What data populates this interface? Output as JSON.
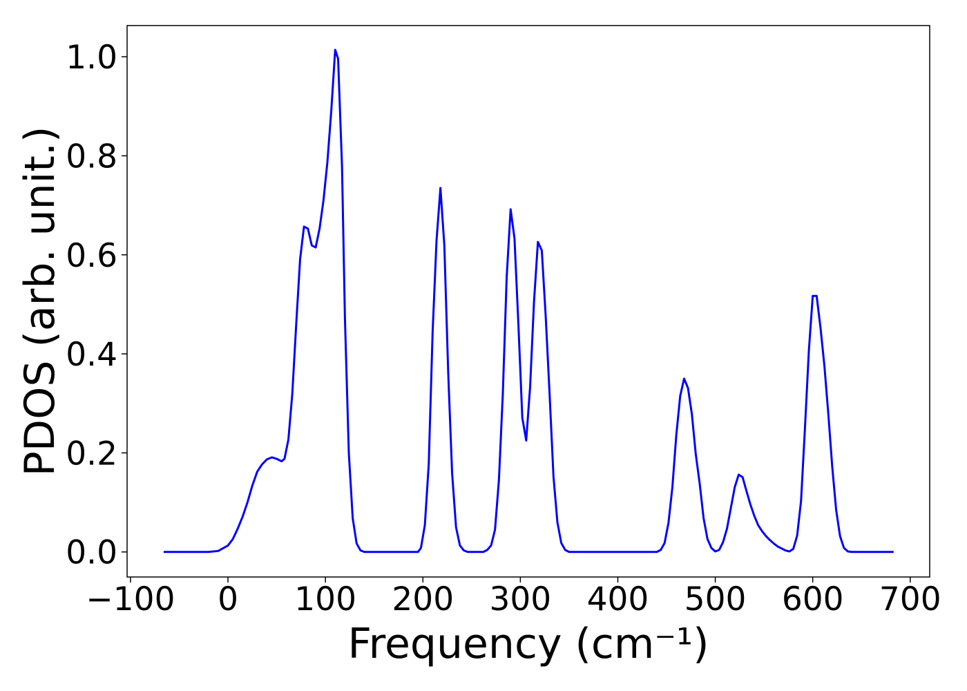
{
  "chart_data": {
    "type": "line",
    "xlabel": "Frequency (cm⁻¹)",
    "ylabel": "PDOS (arb. unit.)",
    "xlim": [
      -103.5,
      720
    ],
    "ylim": [
      -0.0506,
      1.063
    ],
    "xticks": [
      {
        "value": -100,
        "label": "−100"
      },
      0,
      100,
      200,
      300,
      400,
      500,
      600,
      700
    ],
    "yticks": [
      {
        "value": 0,
        "label": "0.0"
      },
      0.2,
      0.4,
      0.6,
      0.8,
      {
        "value": 1,
        "label": "1.0"
      }
    ],
    "grid": false,
    "x": [
      -66,
      -40,
      -20,
      -10,
      0,
      5,
      10,
      15,
      20,
      25,
      30,
      35,
      40,
      45,
      50,
      55,
      58,
      62,
      66,
      70,
      74,
      78,
      82,
      86,
      90,
      94,
      98,
      102,
      106,
      110,
      113,
      117,
      120,
      124,
      128,
      132,
      136,
      140,
      170,
      195,
      198,
      202,
      206,
      210,
      214,
      218,
      222,
      226,
      230,
      234,
      238,
      242,
      246,
      262,
      266,
      270,
      274,
      278,
      282,
      286,
      290,
      294,
      298,
      302,
      306,
      310,
      314,
      318,
      322,
      326,
      330,
      334,
      338,
      342,
      346,
      350,
      400,
      440,
      444,
      448,
      452,
      456,
      460,
      464,
      468,
      472,
      476,
      480,
      484,
      488,
      492,
      496,
      500,
      504,
      508,
      512,
      516,
      520,
      524,
      528,
      532,
      536,
      540,
      544,
      548,
      552,
      556,
      560,
      564,
      568,
      572,
      576,
      580,
      584,
      588,
      592,
      596,
      600,
      604,
      608,
      612,
      616,
      620,
      624,
      628,
      632,
      636,
      640,
      683
    ],
    "series": [
      {
        "name": "PDOS",
        "color": "#0000ff",
        "values": [
          0,
          0,
          0,
          0.002,
          0.013,
          0.026,
          0.047,
          0.071,
          0.1,
          0.134,
          0.162,
          0.177,
          0.187,
          0.191,
          0.188,
          0.183,
          0.188,
          0.227,
          0.319,
          0.459,
          0.591,
          0.657,
          0.653,
          0.619,
          0.615,
          0.653,
          0.71,
          0.787,
          0.891,
          1.014,
          0.996,
          0.78,
          0.473,
          0.2,
          0.068,
          0.017,
          0.003,
          0,
          0,
          0,
          0.008,
          0.054,
          0.177,
          0.445,
          0.629,
          0.735,
          0.619,
          0.361,
          0.158,
          0.05,
          0.013,
          0.003,
          0,
          0,
          0.004,
          0.013,
          0.045,
          0.145,
          0.319,
          0.556,
          0.692,
          0.633,
          0.459,
          0.271,
          0.225,
          0.333,
          0.505,
          0.626,
          0.609,
          0.476,
          0.319,
          0.152,
          0.06,
          0.018,
          0.004,
          0,
          0,
          0,
          0.004,
          0.018,
          0.059,
          0.131,
          0.236,
          0.315,
          0.35,
          0.331,
          0.278,
          0.197,
          0.138,
          0.068,
          0.026,
          0.008,
          0.001,
          0.004,
          0.02,
          0.047,
          0.089,
          0.131,
          0.156,
          0.151,
          0.123,
          0.096,
          0.073,
          0.054,
          0.042,
          0.032,
          0.024,
          0.017,
          0.011,
          0.007,
          0.003,
          0.001,
          0.006,
          0.033,
          0.103,
          0.25,
          0.406,
          0.517,
          0.517,
          0.452,
          0.375,
          0.278,
          0.172,
          0.085,
          0.032,
          0.008,
          0.001,
          0,
          0
        ]
      }
    ]
  }
}
